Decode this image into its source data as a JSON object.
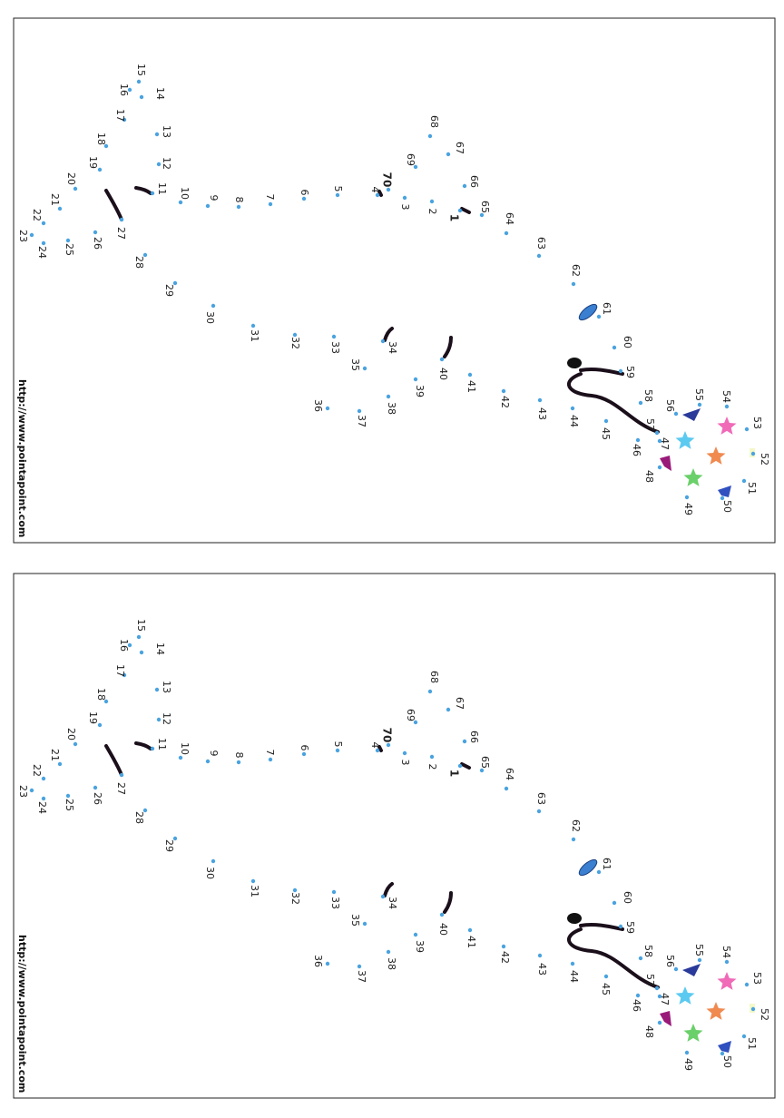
{
  "panels": [
    {
      "url": "http://www.pointapoint.com",
      "dot_labels": [
        1,
        2,
        3,
        4,
        5,
        6,
        7,
        8,
        9,
        10,
        11,
        12,
        13,
        14,
        15,
        16,
        17,
        18,
        19,
        20,
        21,
        22,
        23,
        24,
        25,
        26,
        27,
        28,
        29,
        30,
        31,
        32,
        33,
        34,
        35,
        36,
        37,
        38,
        39,
        40,
        41,
        42,
        43,
        44,
        45,
        46,
        47,
        48,
        49,
        50,
        51,
        52,
        53,
        54,
        55,
        56,
        57,
        58,
        59,
        60,
        61,
        62,
        63,
        64,
        65,
        66,
        67,
        68,
        69,
        70
      ]
    },
    {
      "url": "http://www.pointapoint.com",
      "dot_labels": [
        1,
        2,
        3,
        4,
        5,
        6,
        7,
        8,
        9,
        10,
        11,
        12,
        13,
        14,
        15,
        16,
        17,
        18,
        19,
        20,
        21,
        22,
        23,
        24,
        25,
        26,
        27,
        28,
        29,
        30,
        31,
        32,
        33,
        34,
        35,
        36,
        37,
        38,
        39,
        40,
        41,
        42,
        43,
        44,
        45,
        46,
        47,
        48,
        49,
        50,
        51,
        52,
        53,
        54,
        55,
        56,
        57,
        58,
        59,
        60,
        61,
        62,
        63,
        64,
        65,
        66,
        67,
        68,
        69,
        70
      ]
    }
  ]
}
